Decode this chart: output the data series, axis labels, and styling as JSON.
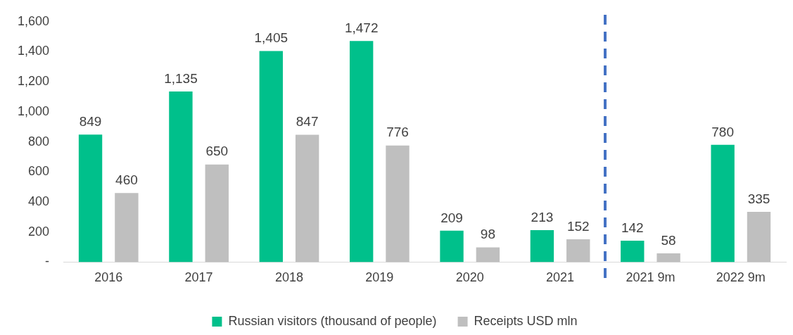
{
  "chart_data": {
    "type": "bar",
    "categories": [
      "2016",
      "2017",
      "2018",
      "2019",
      "2020",
      "2021",
      "2021 9m",
      "2022 9m"
    ],
    "series": [
      {
        "name": "Russian visitors (thousand of people)",
        "color": "#00c08b",
        "values": [
          849,
          1135,
          1405,
          1472,
          209,
          213,
          142,
          780
        ],
        "value_labels": [
          "849",
          "1,135",
          "1,405",
          "1,472",
          "209",
          "213",
          "142",
          "780"
        ]
      },
      {
        "name": "Receipts USD mln",
        "color": "#bfbfbf",
        "values": [
          460,
          650,
          847,
          776,
          98,
          152,
          58,
          335
        ],
        "value_labels": [
          "460",
          "650",
          "847",
          "776",
          "98",
          "152",
          "58",
          "335"
        ]
      }
    ],
    "ylim": [
      0,
      1600
    ],
    "yticks": [
      {
        "value": 0,
        "label": "-"
      },
      200,
      400,
      600,
      800,
      {
        "value": 1000,
        "label": "1,000"
      },
      {
        "value": 1200,
        "label": "1,200"
      },
      {
        "value": 1400,
        "label": "1,400"
      },
      {
        "value": 1600,
        "label": "1,600"
      }
    ],
    "grid": false,
    "legend": "bottom"
  }
}
